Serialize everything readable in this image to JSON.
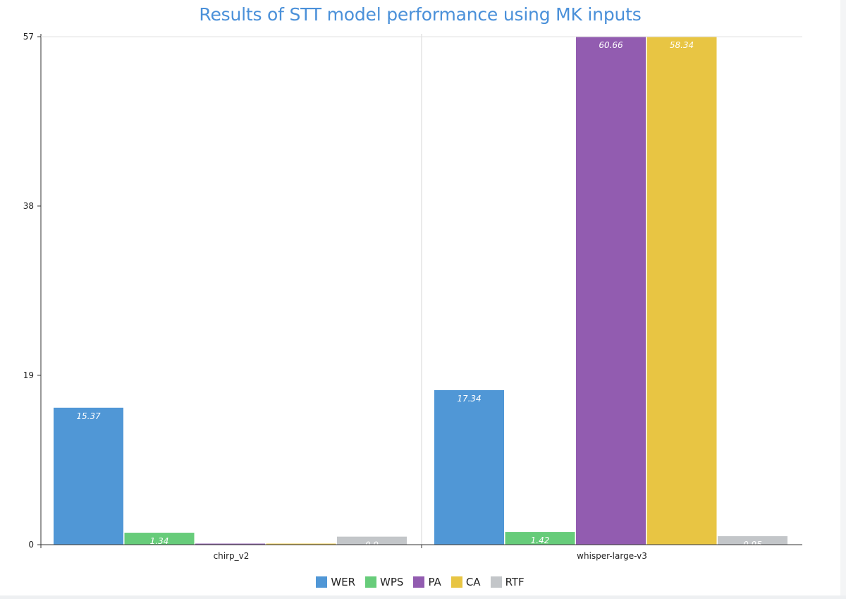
{
  "chart_data": {
    "type": "bar",
    "title": "Results of STT model performance using MK inputs",
    "categories": [
      "chirp_v2",
      "whisper-large-v3"
    ],
    "series": [
      {
        "name": "WER",
        "color": "#5097d6",
        "values": [
          15.37,
          17.34
        ]
      },
      {
        "name": "WPS",
        "color": "#67cc7a",
        "values": [
          1.34,
          1.42
        ]
      },
      {
        "name": "PA",
        "color": "#925cb0",
        "values": [
          0,
          60.66
        ]
      },
      {
        "name": "CA",
        "color": "#e8c543",
        "values": [
          0,
          58.34
        ]
      },
      {
        "name": "RTF",
        "color": "#c3c6c9",
        "values": [
          0.9,
          0.95
        ]
      }
    ],
    "ylim": [
      0,
      57
    ],
    "yticks": [
      0,
      19,
      38,
      57
    ],
    "legend_position": "bottom",
    "grid": false
  }
}
